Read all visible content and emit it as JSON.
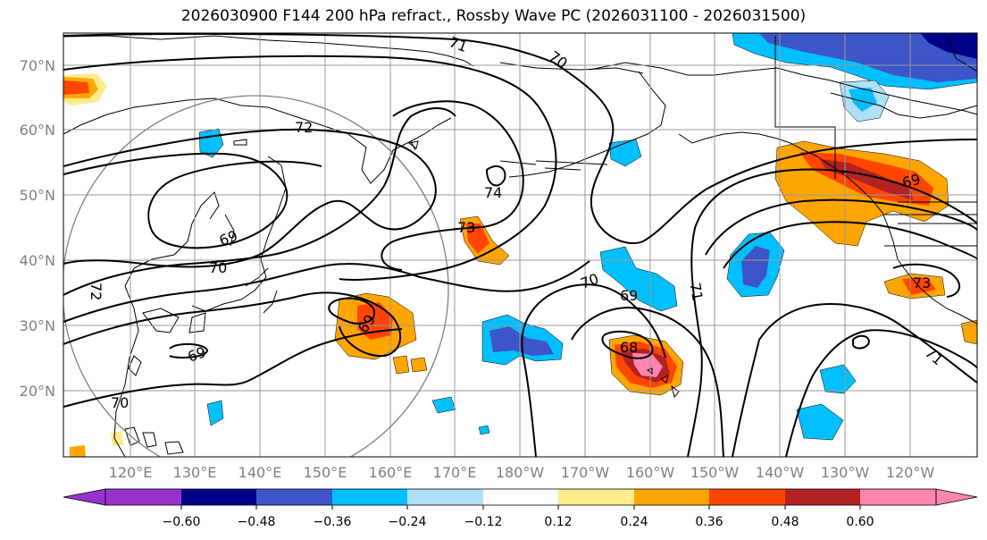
{
  "title": "2026030900 F144 200 hPa refract., Rossby Wave PC (2026031100 - 2026031500)",
  "colors": {
    "purple": "#9932cc",
    "navy": "#00008b",
    "royal": "#3c56c8",
    "sky": "#00bfff",
    "lightblue": "#b0e0f8",
    "yellow": "#ffeb8a",
    "orange": "#ffa500",
    "redorange": "#ff4500",
    "darkred": "#b22222",
    "pink": "#ff85b0"
  },
  "lat_labels": [
    "70°N",
    "60°N",
    "50°N",
    "40°N",
    "30°N",
    "20°N"
  ],
  "lon_labels": [
    "120°E",
    "130°E",
    "140°E",
    "150°E",
    "160°E",
    "170°E",
    "180°W",
    "170°W",
    "160°W",
    "150°W",
    "140°W",
    "130°W",
    "120°W"
  ],
  "colorbar": {
    "ticks": [
      "−0.60",
      "−0.48",
      "−0.36",
      "−0.24",
      "−0.12",
      "0.12",
      "0.24",
      "0.36",
      "0.48",
      "0.60"
    ]
  },
  "contour_labels": [
    {
      "text": "71"
    },
    {
      "text": "70"
    },
    {
      "text": "72"
    },
    {
      "text": "74"
    },
    {
      "text": "73"
    },
    {
      "text": "69"
    },
    {
      "text": "70"
    },
    {
      "text": "72"
    },
    {
      "text": "69"
    },
    {
      "text": "69"
    },
    {
      "text": "70"
    },
    {
      "text": "70"
    },
    {
      "text": "69"
    },
    {
      "text": "68"
    },
    {
      "text": "71"
    },
    {
      "text": "69"
    },
    {
      "text": "73"
    },
    {
      "text": "71"
    }
  ]
}
